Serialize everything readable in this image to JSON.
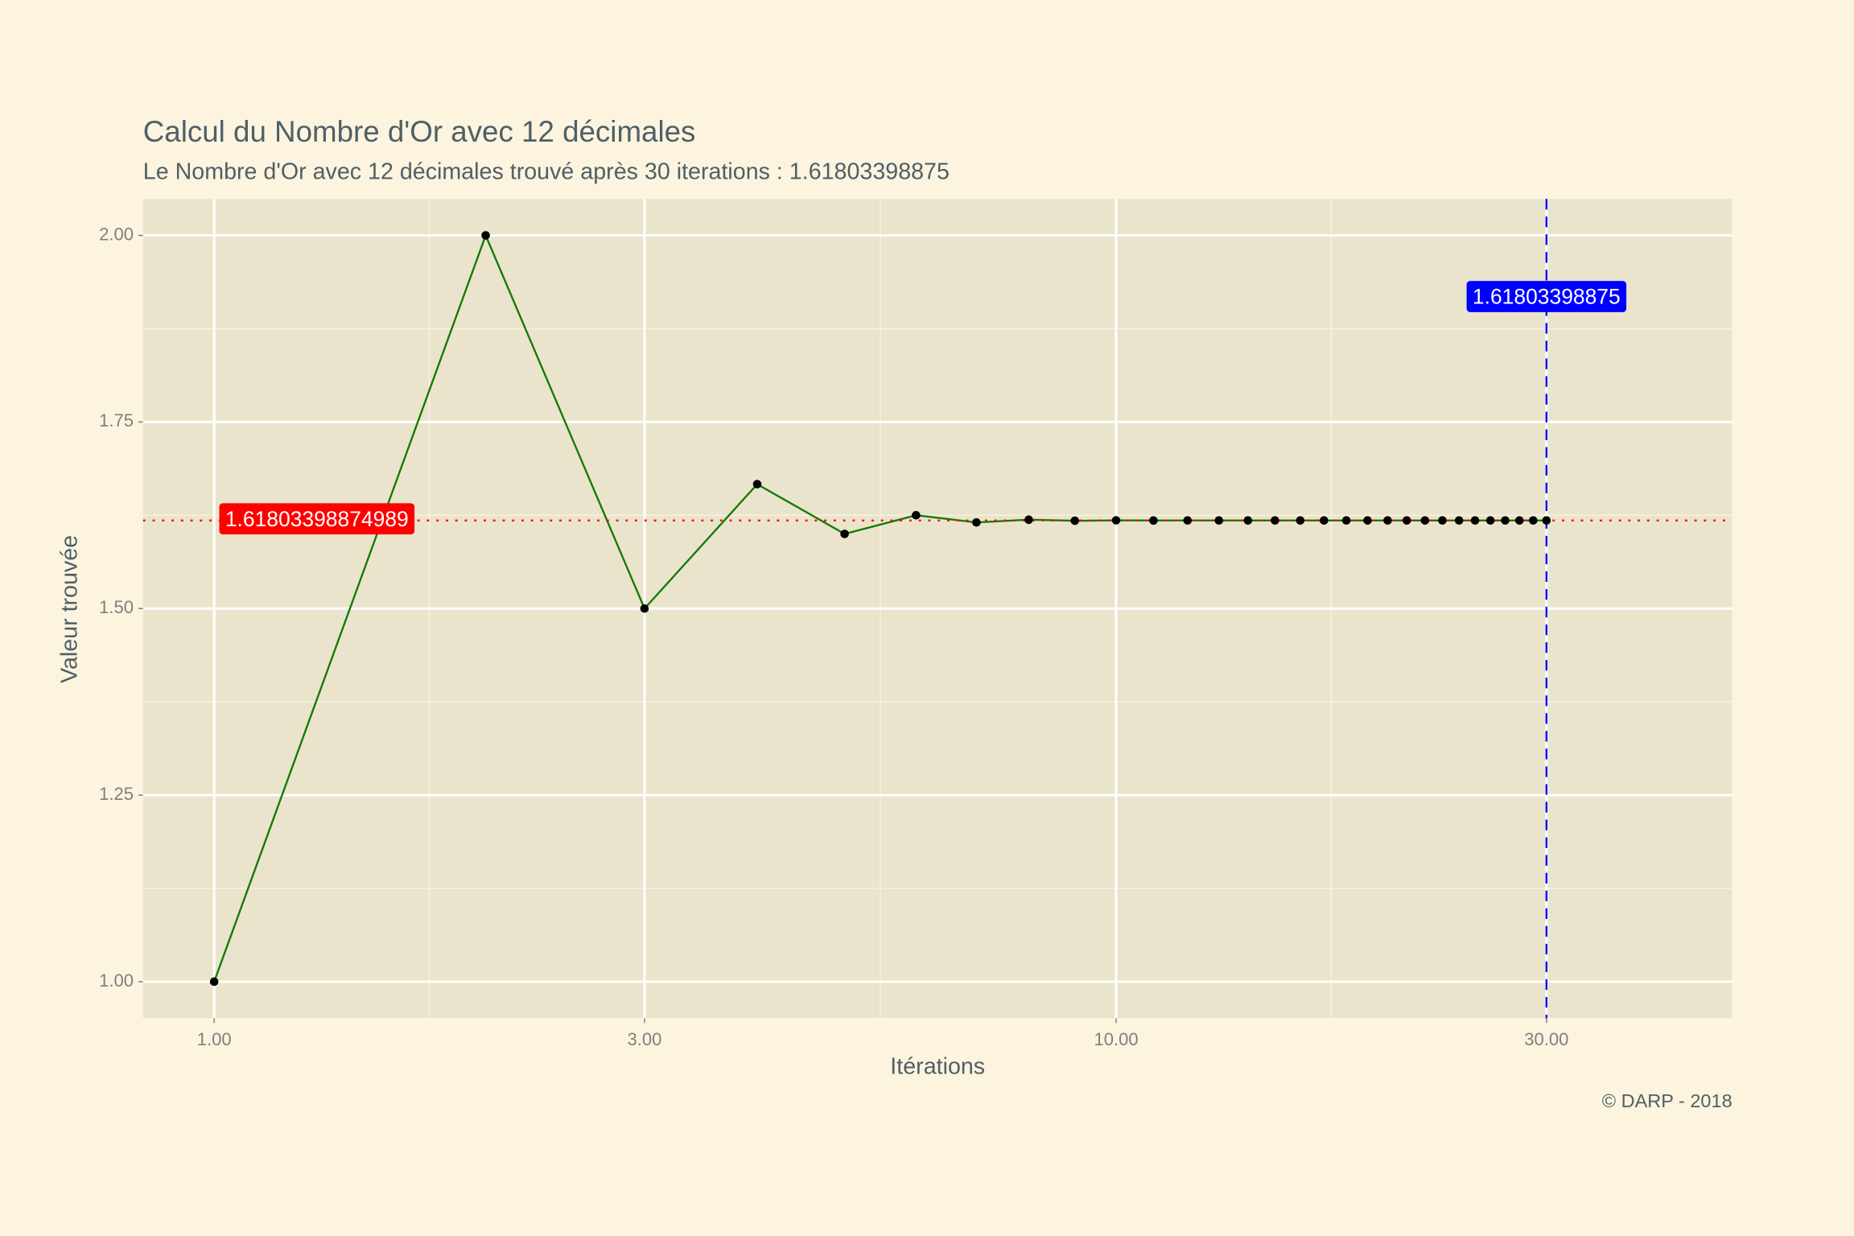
{
  "chart_data": {
    "type": "line",
    "title": "Calcul du Nombre d'Or avec 12 décimales",
    "subtitle": "Le Nombre d'Or avec 12 décimales trouvé après 30 iterations : 1.61803398875",
    "xlabel": "Itérations",
    "ylabel": "Valeur trouvée",
    "caption": "© DARP - 2018",
    "xscale": "log",
    "grid": true,
    "color": "#127a00",
    "point_color": "#000000",
    "x": [
      1,
      2,
      3,
      4,
      5,
      6,
      7,
      8,
      9,
      10,
      11,
      12,
      13,
      14,
      15,
      16,
      17,
      18,
      19,
      20,
      21,
      22,
      23,
      24,
      25,
      26,
      27,
      28,
      29,
      30
    ],
    "values": [
      1,
      2,
      1.5,
      1.666667,
      1.6,
      1.625,
      1.615385,
      1.619048,
      1.617647,
      1.618182,
      1.617978,
      1.618056,
      1.618026,
      1.618037,
      1.618033,
      1.618034,
      1.618034,
      1.618034,
      1.618034,
      1.618034,
      1.618034,
      1.618034,
      1.618034,
      1.618034,
      1.618034,
      1.618034,
      1.618034,
      1.618034,
      1.618034,
      1.618034
    ],
    "xlim": [
      0.834,
      48.2
    ],
    "xticks": [
      {
        "value": 1,
        "label": "1.00"
      },
      {
        "value": 3,
        "label": "3.00"
      },
      {
        "value": 10,
        "label": "10.00"
      },
      {
        "value": 30,
        "label": "30.00"
      }
    ],
    "xminorticks": [
      1.732,
      5.477,
      17.32
    ],
    "ylim": [
      0.951,
      2.049
    ],
    "yticks": [
      {
        "value": 1,
        "label": "1.00"
      },
      {
        "value": 1.25,
        "label": "1.25"
      },
      {
        "value": 1.5,
        "label": "1.50"
      },
      {
        "value": 1.75,
        "label": "1.75"
      },
      {
        "value": 2,
        "label": "2.00"
      }
    ],
    "yminorticks": [
      1.125,
      1.375,
      1.625,
      1.875
    ],
    "annotations": [
      {
        "type": "hline",
        "value": 1.61803398874989,
        "label": "1.61803398874989",
        "color": "#ff0000"
      },
      {
        "type": "vline",
        "value": 30,
        "label": "1.61803398875",
        "color": "#0000ff"
      }
    ]
  }
}
